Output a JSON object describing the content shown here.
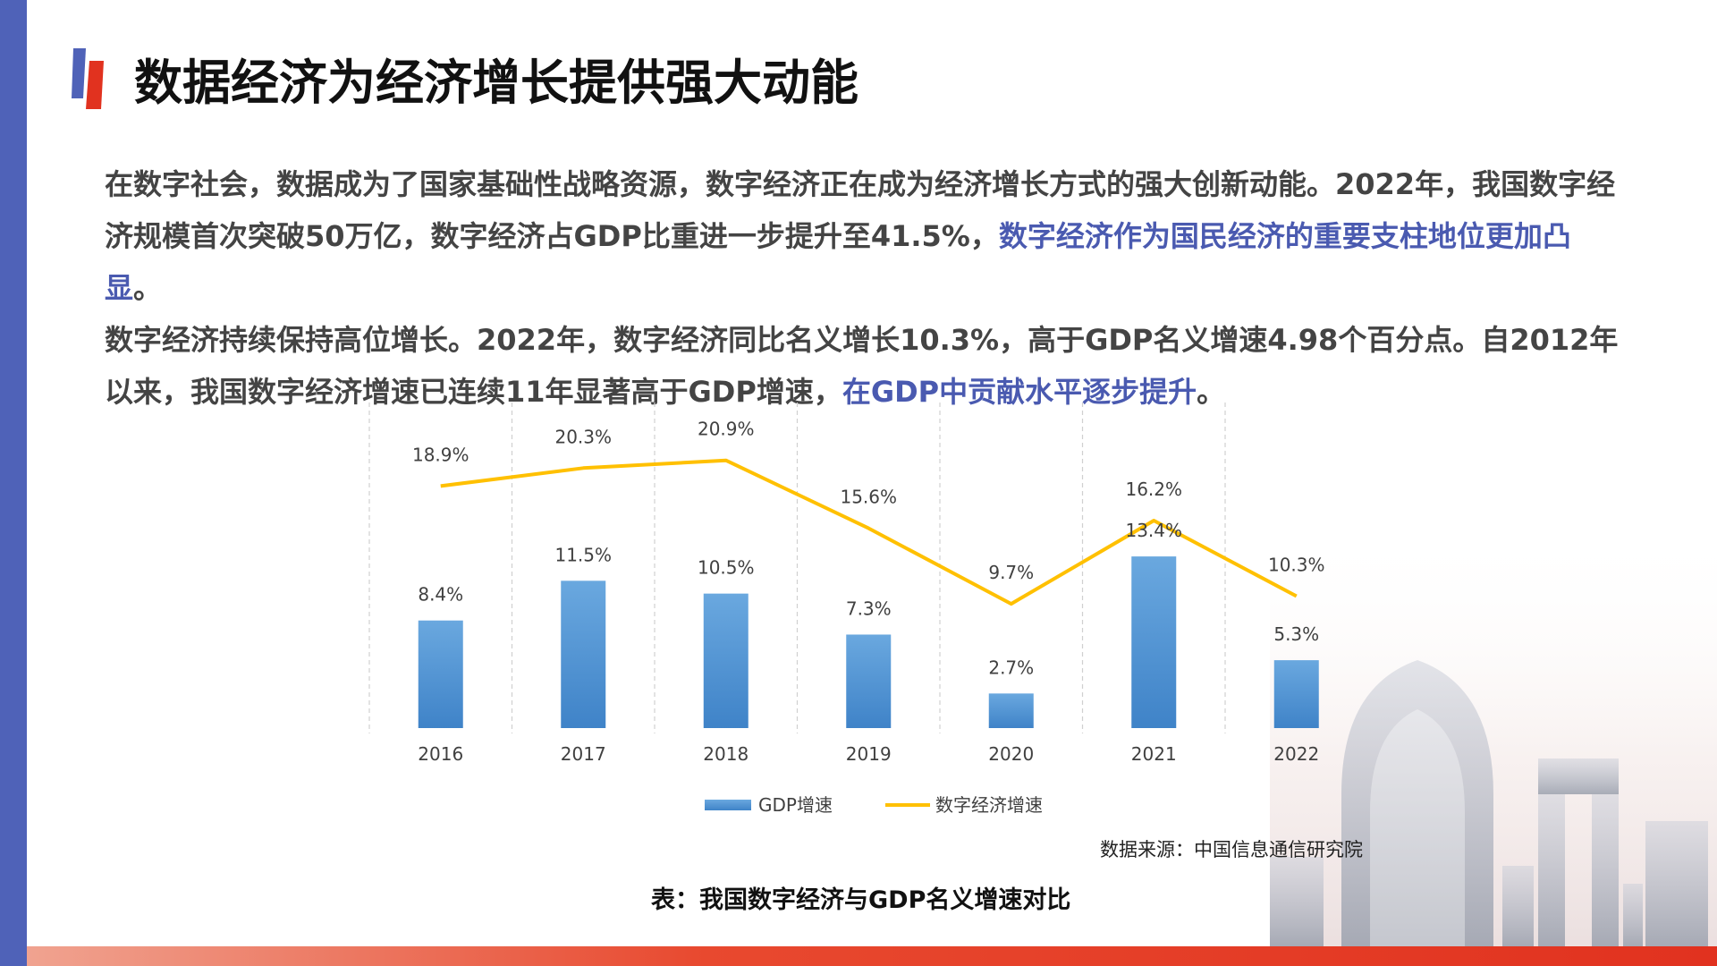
{
  "title": "数据经济为经济增长提供强大动能",
  "paragraph": {
    "p1": "在数字社会，数据成为了国家基础性战略资源，数字经济正在成为经济增长方式的强大创新动能。2022年，我国数字经济规模首次突破50万亿，数字经济占GDP比重进一步提升至41.5%，",
    "p1_highlight": "数字经济作为国民经济的重要支柱地位更加凸显",
    "p1_end": "。",
    "p2": "数字经济持续保持高位增长。2022年，数字经济同比名义增长10.3%，高于GDP名义增速4.98个百分点。自2012年以来，我国数字经济增速已连续11年显著高于GDP增速，",
    "p2_highlight": "在GDP中贡献水平逐步提升",
    "p2_end": "。"
  },
  "colors": {
    "bar": "#5b9bd5",
    "line": "#ffc000",
    "highlight": "#4a5ab0",
    "accent_red": "#e1321f",
    "accent_blue": "#4f62b8"
  },
  "chart_data": {
    "type": "bar",
    "categories": [
      "2016",
      "2017",
      "2018",
      "2019",
      "2020",
      "2021",
      "2022"
    ],
    "series": [
      {
        "name": "GDP增速",
        "type": "bar",
        "values": [
          8.4,
          11.5,
          10.5,
          7.3,
          2.7,
          13.4,
          5.3
        ]
      },
      {
        "name": "数字经济增速",
        "type": "line",
        "values": [
          18.9,
          20.3,
          20.9,
          15.6,
          9.7,
          16.2,
          10.3
        ]
      }
    ],
    "value_suffix": "%",
    "ylim": [
      0,
      25
    ],
    "grid": "vertical-dashed",
    "legend_position": "bottom"
  },
  "source": "数据来源：中国信息通信研究院",
  "caption": "表：我国数字经济与GDP名义增速对比"
}
